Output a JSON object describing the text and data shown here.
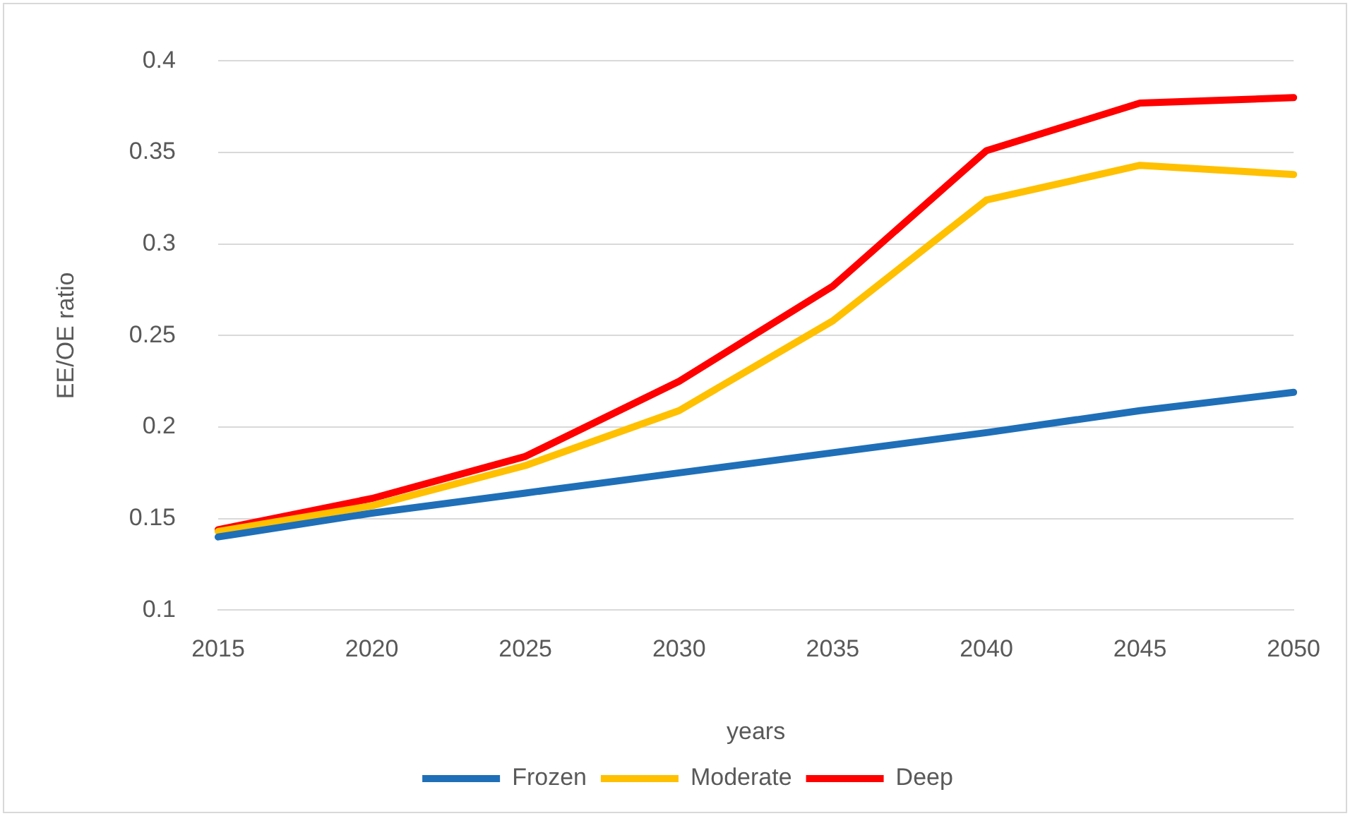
{
  "chart_data": {
    "type": "line",
    "xlabel": "years",
    "ylabel": "EE/OE ratio",
    "categories": [
      "2015",
      "2020",
      "2025",
      "2030",
      "2035",
      "2040",
      "2045",
      "2050"
    ],
    "series": [
      {
        "name": "Frozen",
        "color": "#1f6fb8",
        "values": [
          0.14,
          0.153,
          0.164,
          0.175,
          0.186,
          0.197,
          0.209,
          0.219
        ]
      },
      {
        "name": "Moderate",
        "color": "#ffc000",
        "values": [
          0.143,
          0.157,
          0.179,
          0.209,
          0.258,
          0.324,
          0.343,
          0.338
        ]
      },
      {
        "name": "Deep",
        "color": "#ff0000",
        "values": [
          0.144,
          0.161,
          0.184,
          0.225,
          0.277,
          0.351,
          0.377,
          0.38
        ]
      }
    ],
    "ylim": [
      0.1,
      0.4
    ],
    "yticks": [
      0.1,
      0.15,
      0.2,
      0.25,
      0.3,
      0.35,
      0.4
    ],
    "grid": "y",
    "legend": "bottom",
    "marker": "none",
    "line_style": "solid"
  }
}
